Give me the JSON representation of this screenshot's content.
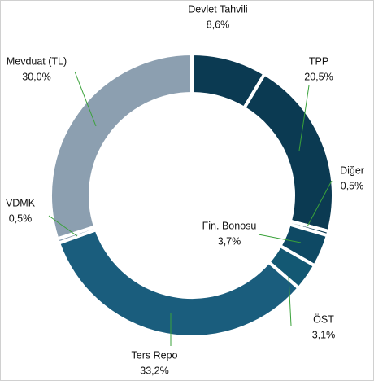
{
  "chart_data": {
    "type": "donut",
    "categories": [
      "Devlet Tahvili",
      "TPP",
      "Diğer",
      "Fin. Bonosu",
      "ÖST",
      "Ters Repo",
      "VDMK",
      "Mevduat (TL)"
    ],
    "values": [
      8.6,
      20.5,
      0.5,
      3.7,
      3.1,
      33.2,
      0.5,
      30.0
    ],
    "value_labels": [
      "8,6%",
      "20,5%",
      "0,5%",
      "3,7%",
      "3,1%",
      "33,2%",
      "0,5%",
      "30,0%"
    ],
    "colors": [
      "#0b3a52",
      "#0b3a52",
      "#0b3a52",
      "#0e4964",
      "#135873",
      "#1a5d7d",
      "#8c9fb0",
      "#8c9fb0"
    ]
  }
}
